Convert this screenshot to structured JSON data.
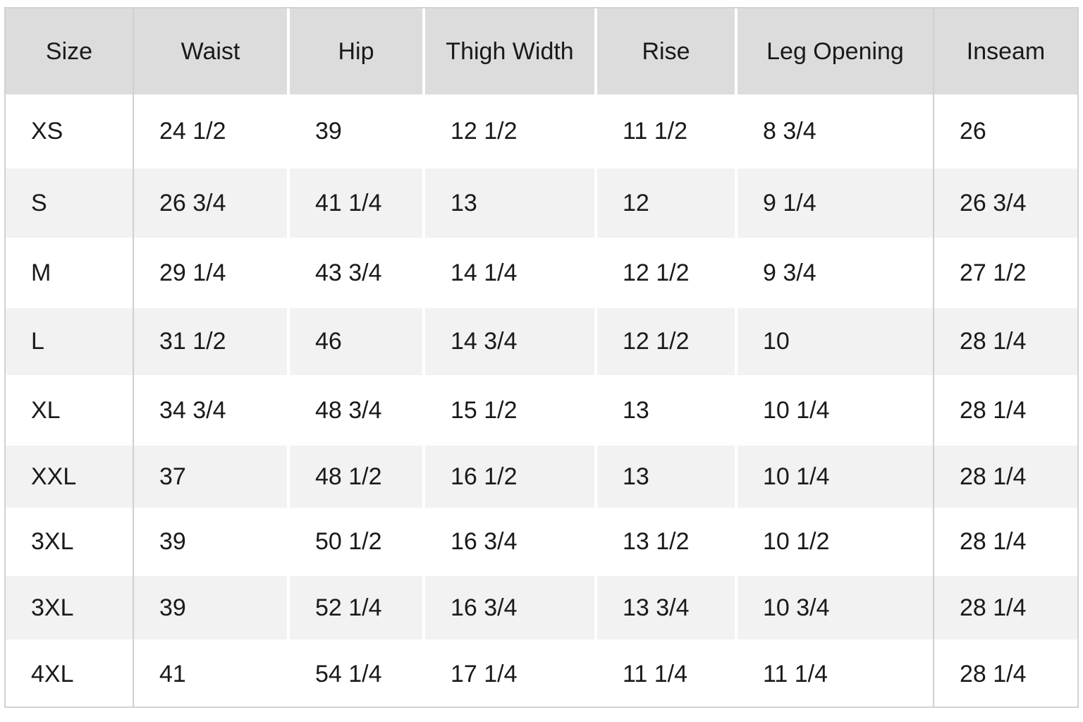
{
  "table": {
    "headers": [
      "Size",
      "Waist",
      "Hip",
      "Thigh Width",
      "Rise",
      "Leg Opening",
      "Inseam"
    ],
    "rows": [
      [
        "XS",
        "24 1/2",
        "39",
        "12 1/2",
        "11 1/2",
        "8 3/4",
        "26"
      ],
      [
        "S",
        "26 3/4",
        "41 1/4",
        "13",
        "12",
        "9 1/4",
        "26 3/4"
      ],
      [
        "M",
        "29 1/4",
        "43 3/4",
        "14 1/4",
        "12 1/2",
        "9 3/4",
        "27 1/2"
      ],
      [
        "L",
        "31 1/2",
        "46",
        "14 3/4",
        "12 1/2",
        "10",
        "28 1/4"
      ],
      [
        "XL",
        "34 3/4",
        "48 3/4",
        "15 1/2",
        "13",
        "10 1/4",
        "28 1/4"
      ],
      [
        "XXL",
        "37",
        "48 1/2",
        "16 1/2",
        "13",
        "10 1/4",
        "28 1/4"
      ],
      [
        "3XL",
        "39",
        "50 1/2",
        "16 3/4",
        "13 1/2",
        "10 1/2",
        "28 1/4"
      ],
      [
        "3XL",
        "39",
        "52 1/4",
        "16 3/4",
        "13 3/4",
        "10 3/4",
        "28 1/4"
      ],
      [
        "4XL",
        "41",
        "54 1/4",
        "17 1/4",
        "11 1/4",
        "11 1/4",
        "28 1/4"
      ]
    ]
  }
}
